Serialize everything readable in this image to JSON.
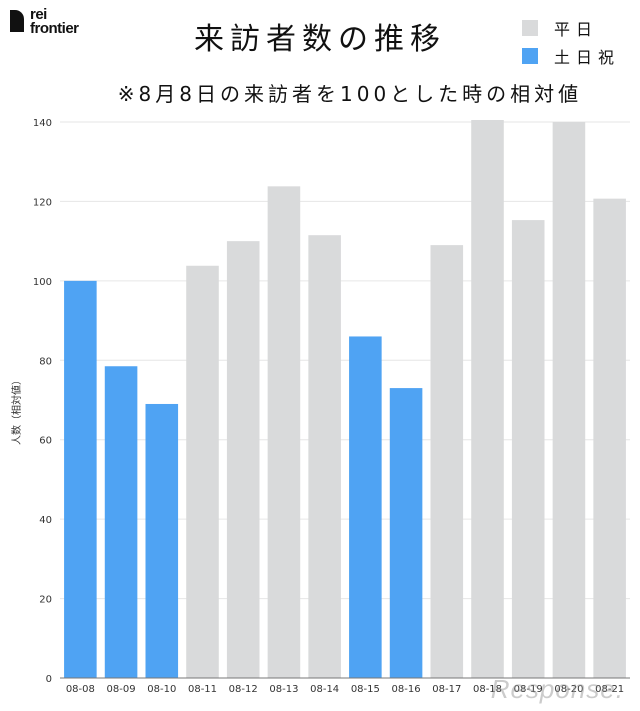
{
  "brand": {
    "line1": "rei",
    "line2": "frontier"
  },
  "watermark": "Response.",
  "colors": {
    "weekday": "#d9dadb",
    "weekend": "#4fa3f3",
    "grid": "#e6e6e6",
    "axis": "#777777"
  },
  "legend": [
    {
      "label": "平日",
      "color": "#d9dadb"
    },
    {
      "label": "土日祝",
      "color": "#4fa3f3"
    }
  ],
  "chart_data": {
    "type": "bar",
    "title": "来訪者数の推移",
    "subtitle": "※8月8日の来訪者を100とした時の相対値",
    "xlabel": "",
    "ylabel": "人数（相対値）",
    "ylim": [
      0,
      140
    ],
    "yticks": [
      0,
      20,
      40,
      60,
      80,
      100,
      120,
      140
    ],
    "grid": true,
    "legend_position": "top-right",
    "categories": [
      "08-08",
      "08-09",
      "08-10",
      "08-11",
      "08-12",
      "08-13",
      "08-14",
      "08-15",
      "08-16",
      "08-17",
      "08-18",
      "08-19",
      "08-20",
      "08-21"
    ],
    "values": [
      100,
      78.5,
      69,
      103.8,
      110,
      123.8,
      111.5,
      86,
      73,
      109,
      140.5,
      115.3,
      140,
      120.7
    ],
    "series_by_category": [
      "土日祝",
      "土日祝",
      "土日祝",
      "平日",
      "平日",
      "平日",
      "平日",
      "土日祝",
      "土日祝",
      "平日",
      "平日",
      "平日",
      "平日",
      "平日"
    ]
  }
}
